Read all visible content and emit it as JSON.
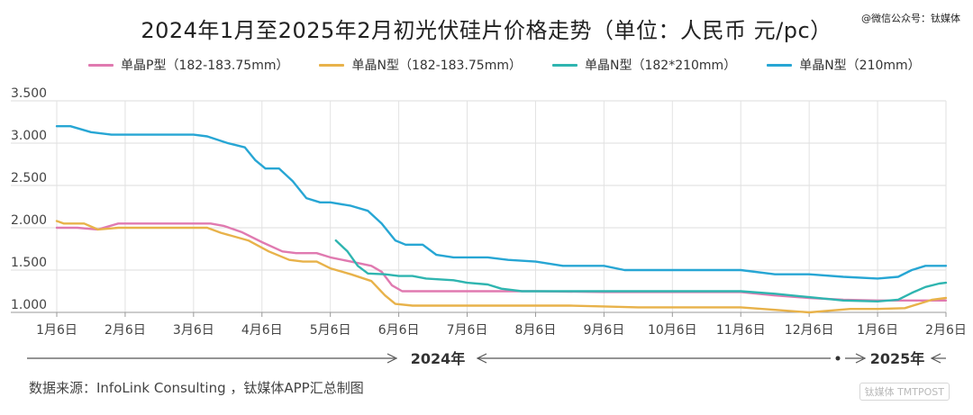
{
  "header": {
    "title": "2024年1月至2025年2月初光伏硅片价格走势（单位：人民币 元/pc）",
    "watermark": "@微信公众号：钛媒体"
  },
  "footer": {
    "source": "数据来源：InfoLink Consulting ，钛媒体APP汇总制图",
    "logo": "钛媒体 TMTPOST"
  },
  "timeline": {
    "year_2024": "2024年",
    "year_2025": "2025年"
  },
  "chart_data": {
    "type": "line",
    "title": "2024年1月至2025年2月初光伏硅片价格走势（单位：人民币 元/pc）",
    "xlabel": "",
    "ylabel": "",
    "ylim": [
      1.0,
      3.5
    ],
    "yticks": [
      "1.000",
      "1.500",
      "2.000",
      "2.500",
      "3.000",
      "3.500"
    ],
    "categories": [
      "1月6日",
      "2月6日",
      "3月6日",
      "4月6日",
      "5月6日",
      "6月6日",
      "7月6日",
      "8月6日",
      "9月6日",
      "10月6日",
      "11月6日",
      "12月6日",
      "1月6日",
      "2月6日"
    ],
    "grid": true,
    "legend_position": "top",
    "series": [
      {
        "name": "单晶P型（182-183.75mm）",
        "color": "#e07ab0",
        "points": [
          [
            0,
            2.0
          ],
          [
            0.3,
            2.0
          ],
          [
            0.6,
            1.98
          ],
          [
            0.9,
            2.05
          ],
          [
            1.3,
            2.05
          ],
          [
            2.0,
            2.05
          ],
          [
            2.25,
            2.05
          ],
          [
            2.45,
            2.02
          ],
          [
            2.7,
            1.95
          ],
          [
            3.0,
            1.83
          ],
          [
            3.3,
            1.72
          ],
          [
            3.5,
            1.7
          ],
          [
            3.8,
            1.7
          ],
          [
            4.0,
            1.65
          ],
          [
            4.3,
            1.6
          ],
          [
            4.6,
            1.55
          ],
          [
            4.75,
            1.48
          ],
          [
            4.9,
            1.32
          ],
          [
            5.05,
            1.25
          ],
          [
            5.5,
            1.25
          ],
          [
            6.0,
            1.25
          ],
          [
            7.0,
            1.25
          ],
          [
            8.0,
            1.24
          ],
          [
            9.0,
            1.24
          ],
          [
            10.0,
            1.24
          ],
          [
            10.5,
            1.2
          ],
          [
            11.0,
            1.17
          ],
          [
            11.5,
            1.15
          ],
          [
            12.0,
            1.14
          ],
          [
            12.5,
            1.14
          ],
          [
            13.0,
            1.14
          ]
        ]
      },
      {
        "name": "单晶N型（182-183.75mm）",
        "color": "#e8b24a",
        "points": [
          [
            0,
            2.08
          ],
          [
            0.1,
            2.05
          ],
          [
            0.4,
            2.05
          ],
          [
            0.6,
            1.98
          ],
          [
            0.9,
            2.0
          ],
          [
            1.5,
            2.0
          ],
          [
            2.2,
            2.0
          ],
          [
            2.4,
            1.94
          ],
          [
            2.8,
            1.85
          ],
          [
            3.1,
            1.72
          ],
          [
            3.4,
            1.62
          ],
          [
            3.6,
            1.6
          ],
          [
            3.8,
            1.6
          ],
          [
            4.0,
            1.52
          ],
          [
            4.3,
            1.45
          ],
          [
            4.6,
            1.37
          ],
          [
            4.8,
            1.2
          ],
          [
            4.95,
            1.1
          ],
          [
            5.2,
            1.08
          ],
          [
            6.0,
            1.08
          ],
          [
            7.0,
            1.08
          ],
          [
            7.5,
            1.08
          ],
          [
            8.0,
            1.07
          ],
          [
            8.5,
            1.06
          ],
          [
            9.0,
            1.06
          ],
          [
            9.5,
            1.06
          ],
          [
            10.0,
            1.06
          ],
          [
            10.5,
            1.03
          ],
          [
            11.0,
            1.0
          ],
          [
            11.3,
            1.02
          ],
          [
            11.6,
            1.04
          ],
          [
            12.0,
            1.04
          ],
          [
            12.4,
            1.05
          ],
          [
            12.8,
            1.15
          ],
          [
            13.0,
            1.17
          ]
        ]
      },
      {
        "name": "单晶N型（182*210mm）",
        "color": "#2fb5b0",
        "points": [
          [
            4.08,
            1.85
          ],
          [
            4.25,
            1.72
          ],
          [
            4.4,
            1.55
          ],
          [
            4.55,
            1.46
          ],
          [
            4.8,
            1.45
          ],
          [
            5.0,
            1.43
          ],
          [
            5.2,
            1.43
          ],
          [
            5.4,
            1.4
          ],
          [
            5.8,
            1.38
          ],
          [
            6.0,
            1.35
          ],
          [
            6.3,
            1.33
          ],
          [
            6.5,
            1.28
          ],
          [
            6.8,
            1.25
          ],
          [
            7.0,
            1.25
          ],
          [
            8.0,
            1.25
          ],
          [
            9.0,
            1.25
          ],
          [
            10.0,
            1.25
          ],
          [
            10.5,
            1.22
          ],
          [
            11.0,
            1.18
          ],
          [
            11.5,
            1.14
          ],
          [
            12.0,
            1.13
          ],
          [
            12.3,
            1.15
          ],
          [
            12.5,
            1.23
          ],
          [
            12.7,
            1.3
          ],
          [
            12.9,
            1.34
          ],
          [
            13.0,
            1.35
          ]
        ]
      },
      {
        "name": "单晶N型（210mm）",
        "color": "#27a6d4",
        "points": [
          [
            0,
            3.2
          ],
          [
            0.2,
            3.2
          ],
          [
            0.5,
            3.13
          ],
          [
            0.8,
            3.1
          ],
          [
            1.2,
            3.1
          ],
          [
            2.0,
            3.1
          ],
          [
            2.2,
            3.08
          ],
          [
            2.5,
            3.0
          ],
          [
            2.75,
            2.95
          ],
          [
            2.9,
            2.8
          ],
          [
            3.05,
            2.7
          ],
          [
            3.25,
            2.7
          ],
          [
            3.45,
            2.55
          ],
          [
            3.65,
            2.35
          ],
          [
            3.85,
            2.3
          ],
          [
            4.0,
            2.3
          ],
          [
            4.3,
            2.26
          ],
          [
            4.55,
            2.2
          ],
          [
            4.75,
            2.05
          ],
          [
            4.95,
            1.85
          ],
          [
            5.1,
            1.8
          ],
          [
            5.35,
            1.8
          ],
          [
            5.55,
            1.68
          ],
          [
            5.8,
            1.65
          ],
          [
            6.3,
            1.65
          ],
          [
            6.6,
            1.62
          ],
          [
            7.0,
            1.6
          ],
          [
            7.4,
            1.55
          ],
          [
            7.7,
            1.55
          ],
          [
            8.0,
            1.55
          ],
          [
            8.3,
            1.5
          ],
          [
            9.0,
            1.5
          ],
          [
            10.0,
            1.5
          ],
          [
            10.5,
            1.45
          ],
          [
            11.0,
            1.45
          ],
          [
            11.5,
            1.42
          ],
          [
            12.0,
            1.4
          ],
          [
            12.3,
            1.42
          ],
          [
            12.5,
            1.5
          ],
          [
            12.7,
            1.55
          ],
          [
            13.0,
            1.55
          ]
        ]
      }
    ]
  }
}
